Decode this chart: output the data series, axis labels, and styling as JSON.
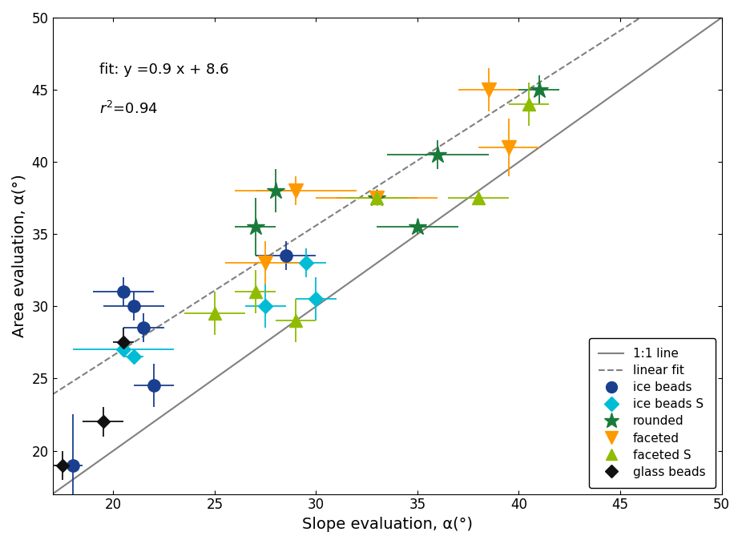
{
  "title": "",
  "xlabel": "Slope evaluation, α(°)",
  "ylabel": "Area evaluation, α(°)",
  "xlim": [
    17,
    50
  ],
  "ylim": [
    17,
    50
  ],
  "fit_label": "fit: y =0.9 x + 8.6",
  "r2_label": "$r^2$=0.94",
  "fit_slope": 0.9,
  "fit_intercept": 8.6,
  "ice_beads": {
    "x": [
      18.0,
      20.5,
      21.0,
      21.5,
      22.0,
      28.5
    ],
    "y": [
      19.0,
      31.0,
      30.0,
      28.5,
      24.5,
      33.5
    ],
    "xerr": [
      0.5,
      1.5,
      1.5,
      1.0,
      1.0,
      1.5
    ],
    "yerr": [
      3.5,
      1.0,
      1.0,
      1.0,
      1.5,
      1.0
    ],
    "color": "#1a3f8f",
    "marker": "o",
    "markersize": 11,
    "label": "ice beads"
  },
  "ice_beads_s": {
    "x": [
      20.5,
      21.0,
      27.5,
      29.5,
      30.0
    ],
    "y": [
      27.0,
      26.5,
      30.0,
      33.0,
      30.5
    ],
    "xerr": [
      2.5,
      0.5,
      1.0,
      1.0,
      1.0
    ],
    "yerr": [
      0.5,
      0.5,
      1.5,
      1.0,
      1.5
    ],
    "color": "#00bcd4",
    "marker": "D",
    "markersize": 9,
    "label": "ice beads S"
  },
  "rounded": {
    "x": [
      27.0,
      28.0,
      33.0,
      35.0,
      36.0,
      41.0
    ],
    "y": [
      35.5,
      38.0,
      37.5,
      35.5,
      40.5,
      45.0
    ],
    "xerr": [
      1.0,
      1.0,
      2.0,
      2.0,
      2.5,
      1.0
    ],
    "yerr": [
      2.0,
      1.5,
      0.5,
      0.5,
      1.0,
      1.0
    ],
    "color": "#1a7a3a",
    "marker": "*",
    "markersize": 16,
    "label": "rounded"
  },
  "faceted": {
    "x": [
      27.5,
      29.0,
      33.0,
      38.5,
      39.5
    ],
    "y": [
      33.0,
      38.0,
      37.5,
      45.0,
      41.0
    ],
    "xerr": [
      2.0,
      3.0,
      3.0,
      1.5,
      1.5
    ],
    "yerr": [
      1.5,
      1.0,
      0.5,
      1.5,
      2.0
    ],
    "color": "#ff9900",
    "marker": "v",
    "markersize": 13,
    "label": "faceted"
  },
  "faceted_s": {
    "x": [
      25.0,
      27.0,
      29.0,
      33.0,
      38.0,
      40.5
    ],
    "y": [
      29.5,
      31.0,
      29.0,
      37.5,
      37.5,
      44.0
    ],
    "xerr": [
      1.5,
      1.0,
      1.0,
      1.5,
      1.5,
      1.0
    ],
    "yerr": [
      1.5,
      1.5,
      1.5,
      0.5,
      0.5,
      1.5
    ],
    "color": "#8fbc00",
    "marker": "^",
    "markersize": 11,
    "label": "faceted S"
  },
  "glass_beads": {
    "x": [
      17.5,
      19.5,
      20.5
    ],
    "y": [
      19.0,
      22.0,
      27.5
    ],
    "xerr": [
      0.5,
      1.0,
      0.5
    ],
    "yerr": [
      1.0,
      1.0,
      1.0
    ],
    "color": "#111111",
    "marker": "D",
    "markersize": 8,
    "label": "glass beads"
  }
}
